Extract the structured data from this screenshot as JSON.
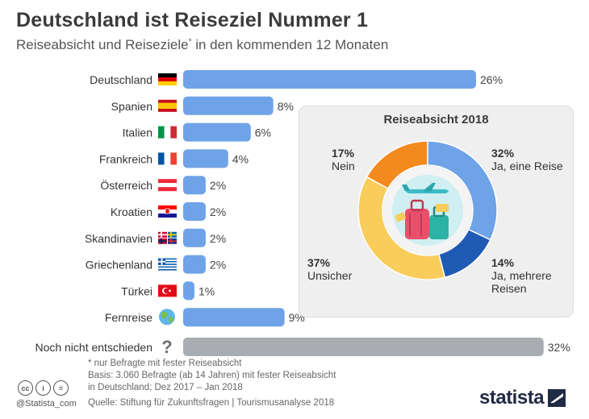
{
  "header": {
    "title": "Deutschland ist Reiseziel Nummer 1",
    "subtitle_main": "Reiseabsicht und Reiseziele",
    "subtitle_mark": "*",
    "subtitle_rest": " in den kommenden 12 Monaten"
  },
  "chart_data": [
    {
      "type": "bar",
      "orientation": "horizontal",
      "categories": [
        "Deutschland",
        "Spanien",
        "Italien",
        "Frankreich",
        "Österreich",
        "Kroatien",
        "Skandinavien",
        "Griechenland",
        "Türkei",
        "Fernreise",
        "Noch nicht entschieden"
      ],
      "values": [
        26,
        8,
        6,
        4,
        2,
        2,
        2,
        2,
        1,
        9,
        32
      ],
      "value_labels": [
        "26%",
        "8%",
        "6%",
        "4%",
        "2%",
        "2%",
        "2%",
        "2%",
        "1%",
        "9%",
        "32%"
      ],
      "icons": [
        "flag-germany",
        "flag-spain",
        "flag-italy",
        "flag-france",
        "flag-austria",
        "flag-croatia",
        "flags-scandinavia",
        "flag-greece",
        "flag-turkey",
        "globe-icon",
        "question-icon"
      ],
      "bar_color": "#6fa3e8",
      "undecided_color": "#a9adb1",
      "unit": "%"
    },
    {
      "type": "pie",
      "title": "Reiseabsicht 2018",
      "slices": [
        {
          "label": "Ja, eine Reise",
          "pct_label": "32%",
          "value": 32,
          "color": "#6fa3e8"
        },
        {
          "label": "Ja, mehrere Reisen",
          "pct_label": "14%",
          "value": 14,
          "color": "#1f5bb5"
        },
        {
          "label": "Unsicher",
          "pct_label": "37%",
          "value": 37,
          "color": "#f9cd5c"
        },
        {
          "label": "Nein",
          "pct_label": "17%",
          "value": 17,
          "color": "#f28a1e"
        }
      ]
    }
  ],
  "footnote": {
    "line1": "* nur Befragte mit fester Reiseabsicht",
    "line2": "Basis: 3.060 Befragte (ab 14 Jahren) mit fester Reiseabsicht",
    "line3": "in Deutschland; Dez 2017 – Jan 2018"
  },
  "source": "Quelle: Stiftung für Zukunftsfragen | Tourismusanalyse 2018",
  "credit": "@Statista_com",
  "license_icons": [
    "cc",
    "i",
    "="
  ],
  "logo": "statista"
}
